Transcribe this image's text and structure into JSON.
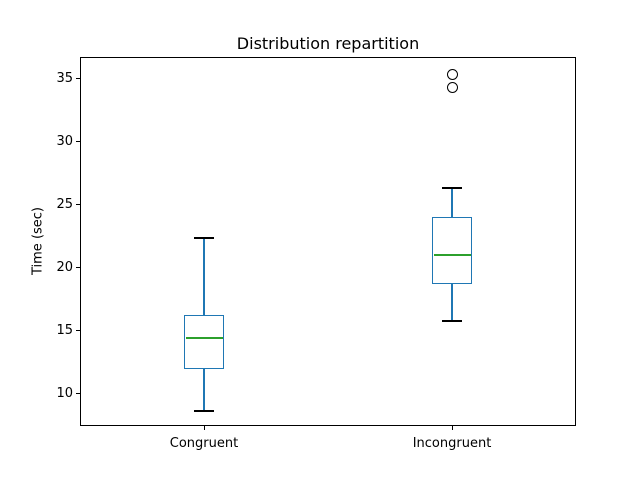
{
  "chart_data": {
    "type": "boxplot",
    "title": "Distribution repartition",
    "xlabel": "",
    "ylabel": "Time (sec)",
    "categories": [
      "Congruent",
      "Incongruent"
    ],
    "yticks": [
      10,
      15,
      20,
      25,
      30,
      35
    ],
    "ylim": [
      7.4,
      36.7
    ],
    "grid": false,
    "legend": "none",
    "series": [
      {
        "name": "Congruent",
        "whislo": 8.6,
        "q1": 11.9,
        "med": 14.4,
        "q3": 16.2,
        "whishi": 22.3,
        "fliers": []
      },
      {
        "name": "Incongruent",
        "whislo": 15.7,
        "q1": 18.7,
        "med": 21.0,
        "q3": 24.0,
        "whishi": 26.3,
        "fliers": [
          34.3,
          35.3
        ]
      }
    ],
    "colors": {
      "box": "#1f77b4",
      "whisker": "#1f77b4",
      "median": "#2ca02c",
      "cap": "#000000",
      "flier_edge": "#000000",
      "spine": "#000000",
      "text": "#000000",
      "background": "#ffffff"
    }
  }
}
